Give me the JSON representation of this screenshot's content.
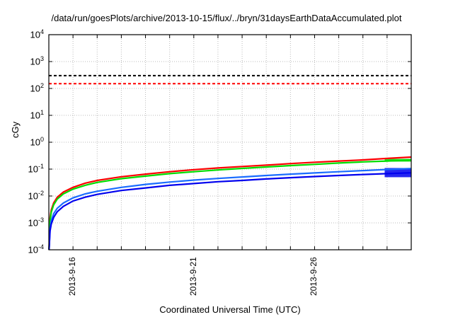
{
  "chart_data": {
    "type": "line",
    "title": "/data/run/goesPlots/archive/2013-10-15/flux/../bryn/31daysEarthDataAccumulated.plot",
    "xlabel": "Coordinated Universal Time (UTC)",
    "ylabel": "cGy",
    "yscale": "log",
    "ylim": [
      0.0001,
      10000
    ],
    "ytick_labels": [
      {
        "base": "10",
        "exp": "-4",
        "value": 0.0001
      },
      {
        "base": "10",
        "exp": "-3",
        "value": 0.001
      },
      {
        "base": "10",
        "exp": "-2",
        "value": 0.01
      },
      {
        "base": "10",
        "exp": "-1",
        "value": 0.1
      },
      {
        "base": "10",
        "exp": "0",
        "value": 1
      },
      {
        "base": "10",
        "exp": "1",
        "value": 10
      },
      {
        "base": "10",
        "exp": "2",
        "value": 100
      },
      {
        "base": "10",
        "exp": "3",
        "value": 1000
      },
      {
        "base": "10",
        "exp": "4",
        "value": 10000
      }
    ],
    "x_unit": "days since 2013-9-15 00:00 UTC",
    "xlim": [
      0,
      15
    ],
    "xtick_labels": [
      {
        "label": "2013-9-16",
        "day": 1
      },
      {
        "label": "2013-9-21",
        "day": 6
      },
      {
        "label": "2013-9-26",
        "day": 11
      }
    ],
    "grid": true,
    "thresholds": [
      {
        "name": "black-threshold",
        "value": 300,
        "color": "#000000"
      },
      {
        "name": "red-threshold",
        "value": 150,
        "color": "#ff0000"
      }
    ],
    "x": [
      0.01,
      0.05,
      0.1,
      0.2,
      0.35,
      0.6,
      1,
      1.5,
      2,
      3,
      4,
      5,
      6,
      7,
      8,
      9,
      10,
      11,
      12,
      13,
      14,
      15
    ],
    "series": [
      {
        "name": "red",
        "color": "#ff0000",
        "values": [
          0.0001,
          0.0015,
          0.003,
          0.0055,
          0.009,
          0.014,
          0.021,
          0.03,
          0.038,
          0.052,
          0.065,
          0.08,
          0.095,
          0.11,
          0.125,
          0.14,
          0.16,
          0.18,
          0.2,
          0.22,
          0.25,
          0.28
        ]
      },
      {
        "name": "green",
        "color": "#00dd00",
        "values": [
          0.0001,
          0.0012,
          0.0025,
          0.0047,
          0.0077,
          0.012,
          0.018,
          0.025,
          0.032,
          0.044,
          0.055,
          0.068,
          0.08,
          0.093,
          0.106,
          0.12,
          0.135,
          0.15,
          0.168,
          0.185,
          0.2,
          0.22
        ]
      },
      {
        "name": "light-blue",
        "color": "#1a6cff",
        "values": [
          0.0001,
          0.0006,
          0.0012,
          0.0022,
          0.0035,
          0.0055,
          0.0085,
          0.012,
          0.015,
          0.021,
          0.027,
          0.033,
          0.039,
          0.045,
          0.051,
          0.058,
          0.065,
          0.072,
          0.08,
          0.088,
          0.097,
          0.105
        ]
      },
      {
        "name": "dark-blue",
        "color": "#0000ee",
        "values": [
          0.0001,
          0.0005,
          0.0009,
          0.0016,
          0.0026,
          0.0041,
          0.0065,
          0.009,
          0.0115,
          0.016,
          0.02,
          0.025,
          0.029,
          0.034,
          0.038,
          0.043,
          0.048,
          0.053,
          0.058,
          0.063,
          0.068,
          0.073
        ]
      }
    ],
    "end_bands": [
      {
        "name": "green-band",
        "color": "#00dd00",
        "from_day": 13.9,
        "low": 0.19,
        "high": 0.24
      },
      {
        "name": "blue-band",
        "color": "#0000ee",
        "from_day": 13.9,
        "low": 0.05,
        "high": 0.11
      }
    ]
  }
}
